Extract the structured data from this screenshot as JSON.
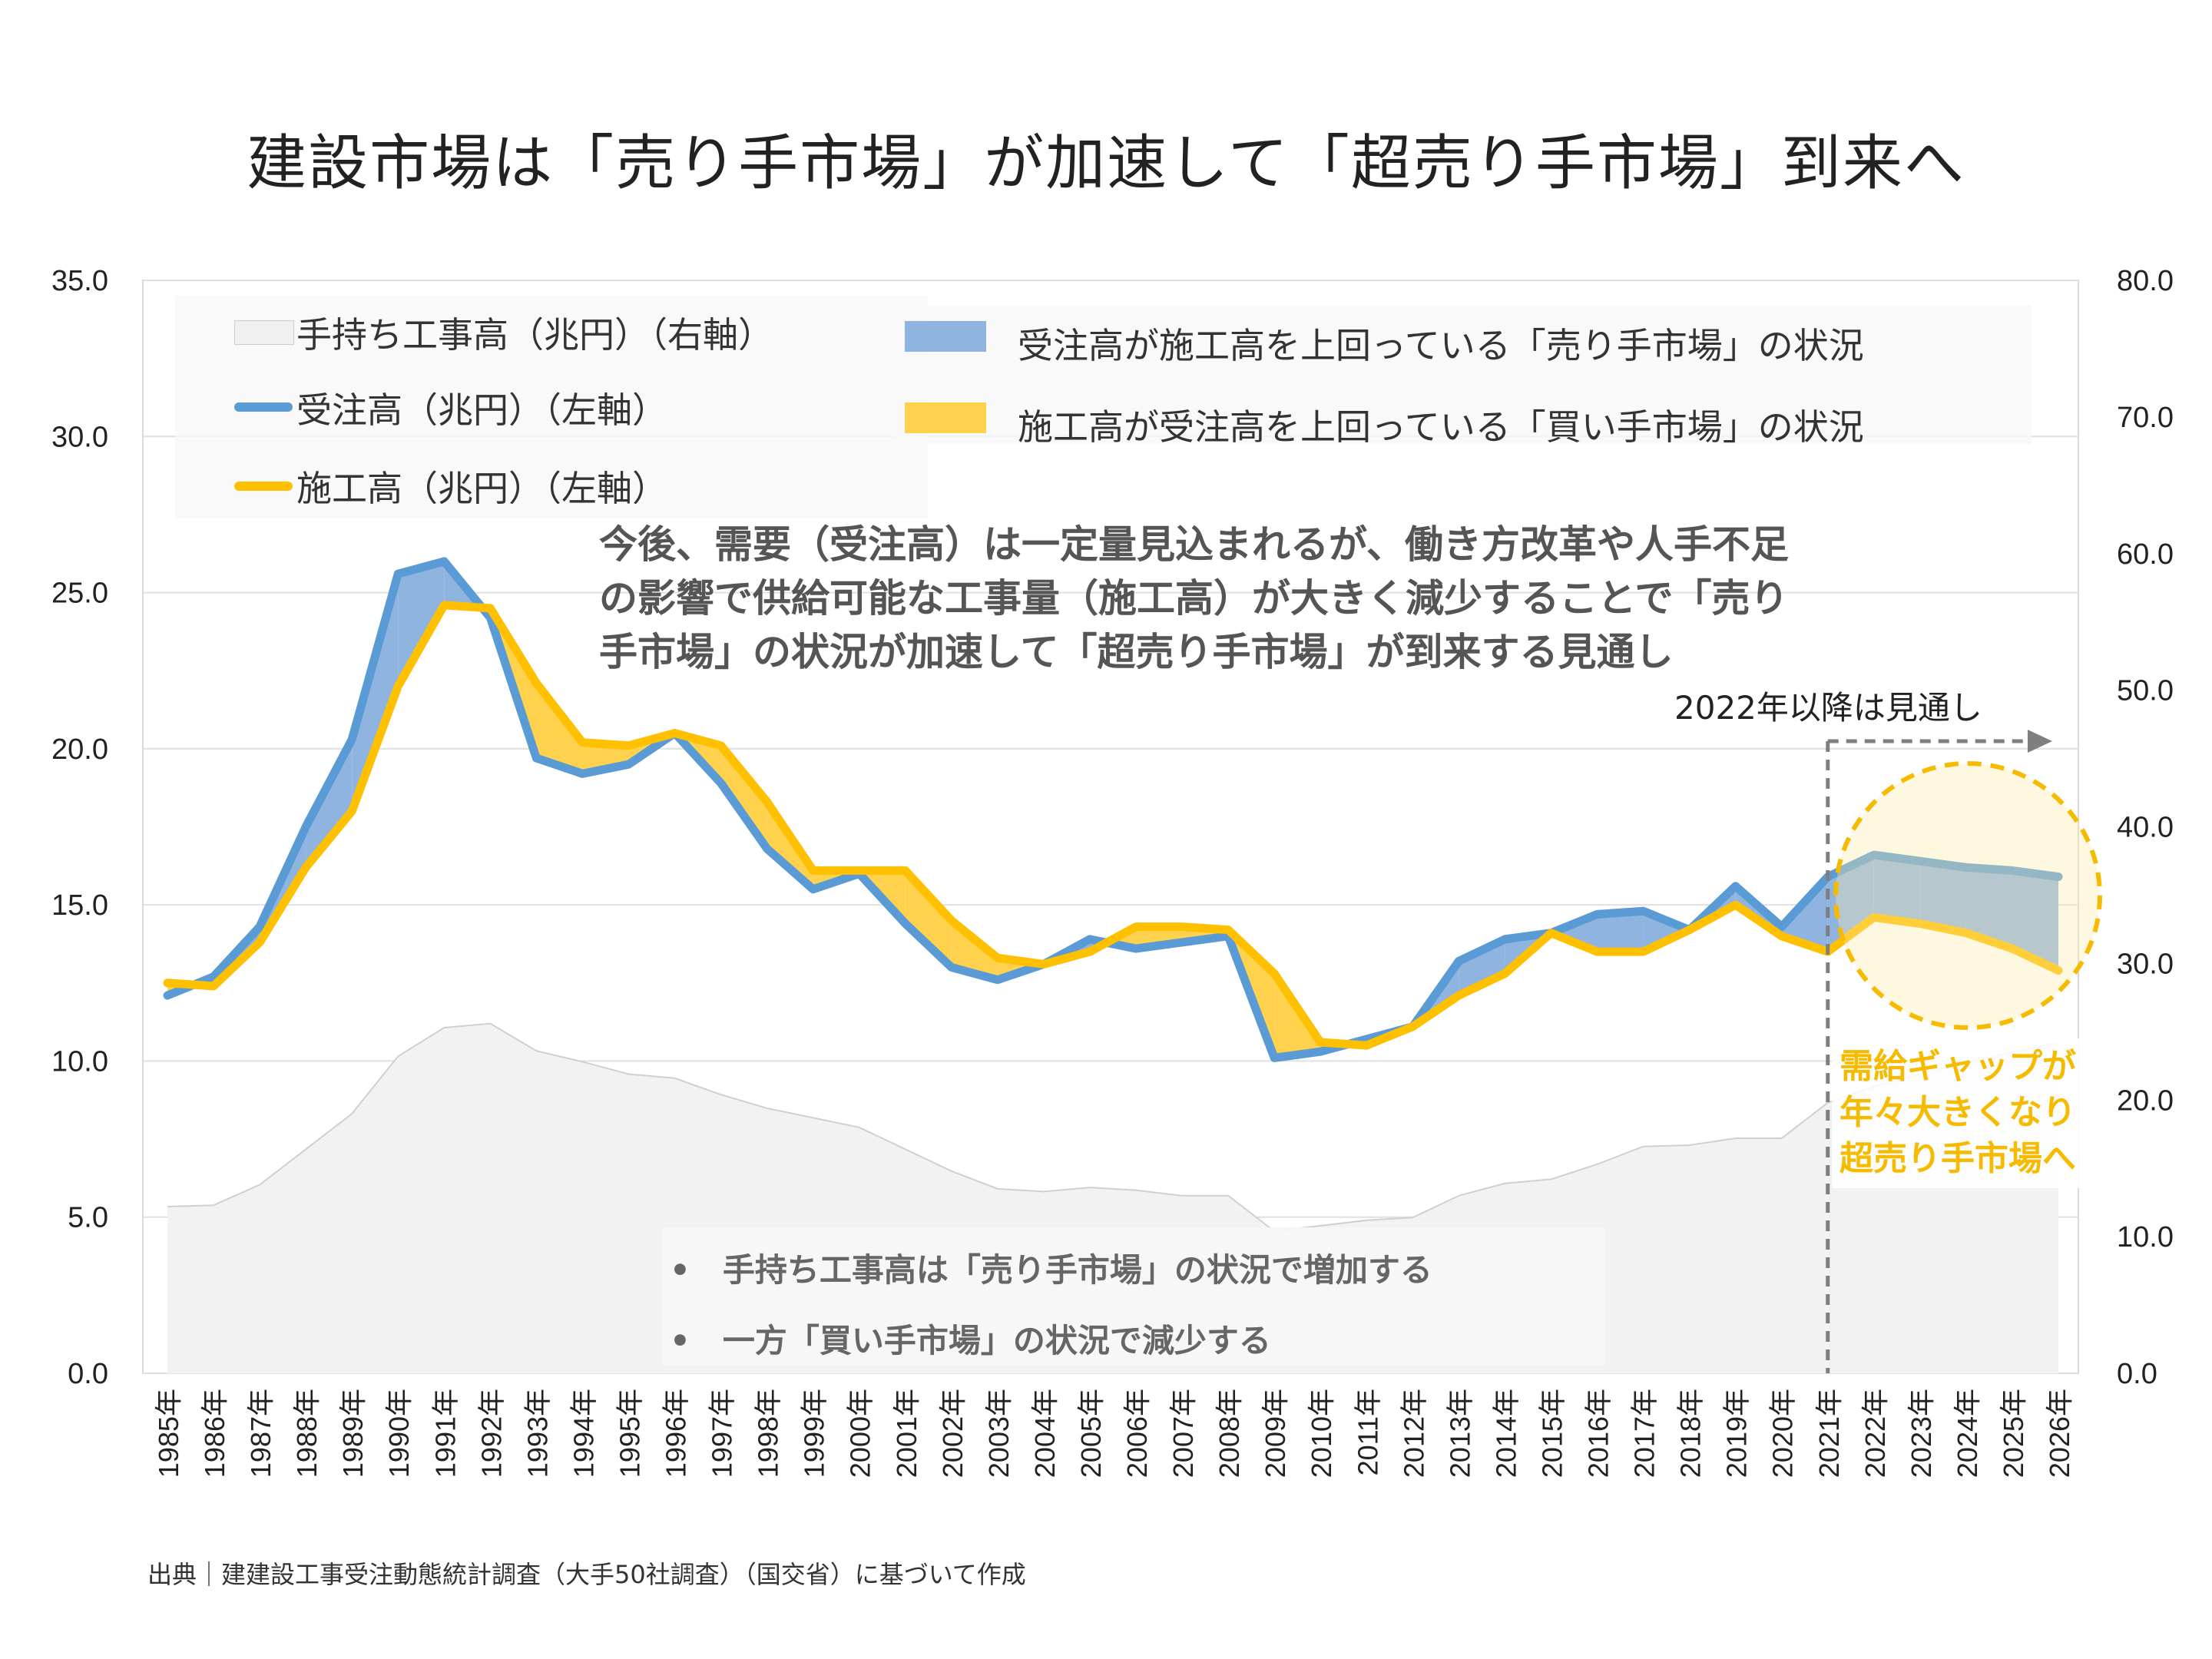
{
  "title": "建設市場は「売り手市場」が加速して「超売り手市場」到来へ",
  "legend": {
    "backlog": "手持ち工事高（兆円）（右軸）",
    "orders": "受注高（兆円）（左軸）",
    "construction": "施工高（兆円）（左軸）",
    "seller": "受注高が施工高を上回っている「売り手市場」の状況",
    "buyer": "施工高が受注高を上回っている「買い手市場」の状況"
  },
  "note": {
    "line1": "今後、需要（受注高）は一定量見込まれるが、働き方改革や人手不足",
    "line2": "の影響で供給可能な工事量（施工高）が大きく減少することで「売り",
    "line3": "手市場」の状況が加速して「超売り手市場」が到来する見通し"
  },
  "forecast_label": "2022年以降は見通し",
  "callout": {
    "line1": "需給ギャップが",
    "line2": "年々大きくなり",
    "line3": "超売り手市場へ"
  },
  "bullets": [
    "•　手持ち工事高は「売り手市場」の状況で増加する",
    "•　一方「買い手市場」の状況で減少する"
  ],
  "source": "出典｜建建設工事受注動態統計調査（大手50社調査）（国交省）に基づいて作成",
  "colors": {
    "orders": "#5b9bd5",
    "construction": "#ffc000",
    "seller_fill": "#8fb4e0",
    "buyer_fill": "#ffd24d",
    "backlog_fill": "#f2f2f2",
    "backlog_line": "#d0d0d0",
    "callout": "#f6bb00"
  },
  "chart_data": {
    "type": "line",
    "categories": [
      "1985年",
      "1986年",
      "1987年",
      "1988年",
      "1989年",
      "1990年",
      "1991年",
      "1992年",
      "1993年",
      "1994年",
      "1995年",
      "1996年",
      "1997年",
      "1998年",
      "1999年",
      "2000年",
      "2001年",
      "2002年",
      "2003年",
      "2004年",
      "2005年",
      "2006年",
      "2007年",
      "2008年",
      "2009年",
      "2010年",
      "2011年",
      "2012年",
      "2013年",
      "2014年",
      "2015年",
      "2016年",
      "2017年",
      "2018年",
      "2019年",
      "2020年",
      "2021年",
      "2022年",
      "2023年",
      "2024年",
      "2025年",
      "2026年"
    ],
    "left_axis": {
      "min": 0,
      "max": 35,
      "ticks": [
        "0.0",
        "5.0",
        "10.0",
        "15.0",
        "20.0",
        "25.0",
        "30.0",
        "35.0"
      ]
    },
    "right_axis": {
      "min": 0,
      "max": 80,
      "ticks": [
        "0.0",
        "10.0",
        "20.0",
        "30.0",
        "40.0",
        "50.0",
        "60.0",
        "70.0",
        "80.0"
      ]
    },
    "forecast_start": "2021年",
    "series": [
      {
        "name": "受注高（兆円）（左軸）",
        "axis": "left",
        "values": [
          12.1,
          12.7,
          14.3,
          17.5,
          20.3,
          25.6,
          26.0,
          24.2,
          19.7,
          19.2,
          19.5,
          20.5,
          18.9,
          16.8,
          15.5,
          16.0,
          14.4,
          13.0,
          12.6,
          13.1,
          13.9,
          13.6,
          13.8,
          14.0,
          10.1,
          10.3,
          10.7,
          11.1,
          13.2,
          13.9,
          14.1,
          14.7,
          14.8,
          14.2,
          15.6,
          14.3,
          15.9,
          16.6,
          16.4,
          16.2,
          16.1,
          15.9
        ]
      },
      {
        "name": "施工高（兆円）（左軸）",
        "axis": "left",
        "values": [
          12.5,
          12.4,
          13.8,
          16.2,
          18.0,
          22.0,
          24.6,
          24.5,
          22.1,
          20.2,
          20.1,
          20.5,
          20.1,
          18.3,
          16.1,
          16.1,
          16.1,
          14.5,
          13.3,
          13.1,
          13.5,
          14.3,
          14.3,
          14.2,
          12.8,
          10.6,
          10.5,
          11.1,
          12.1,
          12.8,
          14.1,
          13.5,
          13.5,
          14.2,
          15.0,
          14.0,
          13.5,
          14.6,
          14.4,
          14.1,
          13.6,
          12.9
        ]
      },
      {
        "name": "手持ち工事高（兆円）（右軸）",
        "axis": "right",
        "values": [
          12.2,
          12.3,
          13.8,
          16.4,
          19.0,
          23.2,
          25.3,
          25.6,
          23.6,
          22.8,
          21.9,
          21.6,
          20.4,
          19.4,
          18.7,
          18.0,
          16.4,
          14.8,
          13.5,
          13.3,
          13.6,
          13.4,
          13.0,
          13.0,
          10.4,
          10.8,
          11.2,
          11.4,
          13.0,
          13.9,
          14.2,
          15.3,
          16.6,
          16.7,
          17.2,
          17.2,
          19.8,
          21.0,
          21.9,
          22.8,
          23.5,
          24.2
        ]
      }
    ]
  }
}
